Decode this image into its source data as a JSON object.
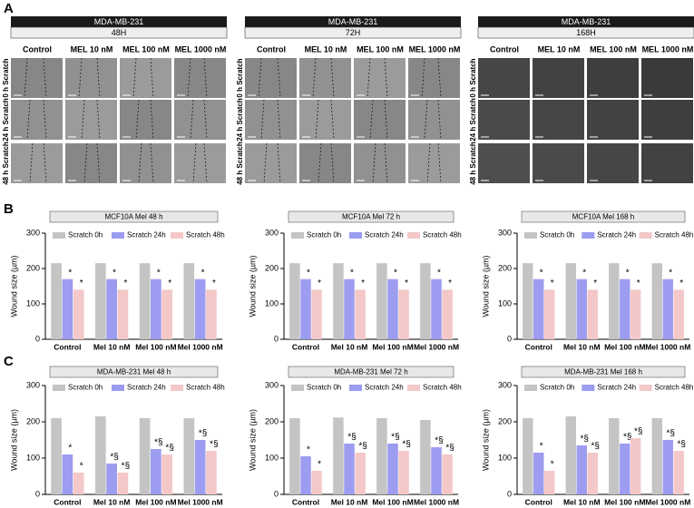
{
  "panel_labels": [
    "A",
    "B",
    "C"
  ],
  "panel_a": {
    "groups": [
      {
        "header": "MDA-MB-231",
        "time": "48H"
      },
      {
        "header": "MDA-MB-231",
        "time": "72H"
      },
      {
        "header": "MDA-MB-231",
        "time": "168H"
      }
    ],
    "columns": [
      "Control",
      "MEL 10 nM",
      "MEL 100 nM",
      "MEL 1000 nM"
    ],
    "rows": [
      "0 h Scratch",
      "24 h Scratch",
      "48 h Scratch"
    ]
  },
  "chart_data": [
    {
      "type": "bar",
      "title": "MCF10A Mel 48 h",
      "y_label": "Wound size (µm)",
      "categories": [
        "Control",
        "Mel 10 nM",
        "Mel 100 nM",
        "Mel 1000 nM"
      ],
      "ylim": [
        0,
        300
      ],
      "yticks": [
        0,
        100,
        200,
        300
      ],
      "series": [
        {
          "name": "Scratch 0h",
          "color": "#c4c4c4",
          "values": [
            215,
            215,
            215,
            215
          ]
        },
        {
          "name": "Scratch 24h",
          "color": "#9c9cf0",
          "values": [
            170,
            170,
            170,
            170
          ],
          "markers": [
            "*",
            "*",
            "*",
            "*"
          ]
        },
        {
          "name": "Scratch 48h",
          "color": "#f4c8c8",
          "values": [
            140,
            140,
            140,
            140
          ],
          "markers": [
            "*",
            "*",
            "*",
            "*"
          ]
        }
      ]
    },
    {
      "type": "bar",
      "title": "MCF10A Mel 72 h",
      "y_label": "Wound size (µm)",
      "categories": [
        "Control",
        "Mel 10 nM",
        "Mel 100 nM",
        "Mel 1000 nM"
      ],
      "ylim": [
        0,
        300
      ],
      "yticks": [
        0,
        100,
        200,
        300
      ],
      "series": [
        {
          "name": "Scratch 0h",
          "color": "#c4c4c4",
          "values": [
            215,
            215,
            215,
            215
          ]
        },
        {
          "name": "Scratch 24h",
          "color": "#9c9cf0",
          "values": [
            170,
            170,
            170,
            170
          ],
          "markers": [
            "*",
            "*",
            "*",
            "*"
          ]
        },
        {
          "name": "Scratch 48h",
          "color": "#f4c8c8",
          "values": [
            140,
            140,
            140,
            140
          ],
          "markers": [
            "*",
            "*",
            "*",
            "*"
          ]
        }
      ]
    },
    {
      "type": "bar",
      "title": "MCF10A Mel 168 h",
      "y_label": "Wound size (µm)",
      "categories": [
        "Control",
        "Mel 10 nM",
        "Mel 100 nM",
        "Mel 1000 nM"
      ],
      "ylim": [
        0,
        300
      ],
      "yticks": [
        0,
        100,
        200,
        300
      ],
      "series": [
        {
          "name": "Scratch 0h",
          "color": "#c4c4c4",
          "values": [
            215,
            215,
            215,
            215
          ]
        },
        {
          "name": "Scratch 24h",
          "color": "#9c9cf0",
          "values": [
            170,
            170,
            170,
            170
          ],
          "markers": [
            "*",
            "*",
            "*",
            "*"
          ]
        },
        {
          "name": "Scratch 48h",
          "color": "#f4c8c8",
          "values": [
            140,
            140,
            140,
            140
          ],
          "markers": [
            "*",
            "*",
            "*",
            "*"
          ]
        }
      ]
    },
    {
      "type": "bar",
      "title": "MDA-MB-231 Mel 48 h",
      "y_label": "Wound size (µm)",
      "categories": [
        "Control",
        "Mel 10 nM",
        "Mel 100 nM",
        "Mel 1000 nM"
      ],
      "ylim": [
        0,
        300
      ],
      "yticks": [
        0,
        100,
        200,
        300
      ],
      "series": [
        {
          "name": "Scratch 0h",
          "color": "#c4c4c4",
          "values": [
            210,
            215,
            210,
            210
          ]
        },
        {
          "name": "Scratch 24h",
          "color": "#9c9cf0",
          "values": [
            110,
            85,
            125,
            150
          ],
          "markers": [
            "*",
            "*§",
            "*§",
            "*§"
          ]
        },
        {
          "name": "Scratch 48h",
          "color": "#f4c8c8",
          "values": [
            60,
            60,
            110,
            120
          ],
          "markers": [
            "*",
            "*§",
            "*§",
            "*§"
          ]
        }
      ]
    },
    {
      "type": "bar",
      "title": "MDA-MB-231 Mel 72 h",
      "y_label": "Wound size (µm)",
      "categories": [
        "Control",
        "Mel 10 nM",
        "Mel 100 nM",
        "Mel 1000 nM"
      ],
      "ylim": [
        0,
        300
      ],
      "yticks": [
        0,
        100,
        200,
        300
      ],
      "series": [
        {
          "name": "Scratch 0h",
          "color": "#c4c4c4",
          "values": [
            210,
            212,
            210,
            205
          ]
        },
        {
          "name": "Scratch 24h",
          "color": "#9c9cf0",
          "values": [
            105,
            140,
            140,
            130
          ],
          "markers": [
            "*",
            "*§",
            "*§",
            "*§"
          ]
        },
        {
          "name": "Scratch 48h",
          "color": "#f4c8c8",
          "values": [
            65,
            115,
            120,
            110
          ],
          "markers": [
            "*",
            "*§",
            "*§",
            "*§"
          ]
        }
      ]
    },
    {
      "type": "bar",
      "title": "MDA-MB-231 Mel 168 h",
      "y_label": "Wound size (µm)",
      "categories": [
        "Control",
        "Mel 10 nM",
        "Mel 100 nM",
        "Mel 1000 nM"
      ],
      "ylim": [
        0,
        300
      ],
      "yticks": [
        0,
        100,
        200,
        300
      ],
      "series": [
        {
          "name": "Scratch 0h",
          "color": "#c4c4c4",
          "values": [
            210,
            215,
            210,
            210
          ]
        },
        {
          "name": "Scratch 24h",
          "color": "#9c9cf0",
          "values": [
            115,
            135,
            140,
            150
          ],
          "markers": [
            "*",
            "*§",
            "*§",
            "*§"
          ]
        },
        {
          "name": "Scratch 48h",
          "color": "#f4c8c8",
          "values": [
            65,
            115,
            155,
            120
          ],
          "markers": [
            "*",
            "*§",
            "*§",
            "*§"
          ]
        }
      ]
    }
  ]
}
